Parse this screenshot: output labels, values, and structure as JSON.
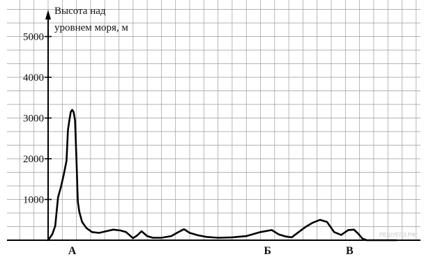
{
  "chart_data": {
    "type": "line",
    "ylabel": [
      "Высота над",
      "уровнем моря, м"
    ],
    "yticks": [
      {
        "value": 1000,
        "label": "1000"
      },
      {
        "value": 2000,
        "label": "2000"
      },
      {
        "value": 3000,
        "label": "3000"
      },
      {
        "value": 4000,
        "label": "4000"
      },
      {
        "value": 5000,
        "label": "5000"
      }
    ],
    "ylim": [
      0,
      5500
    ],
    "grid": true,
    "points_of_interest": [
      {
        "label": "А",
        "x": 1.7
      },
      {
        "label": "Б",
        "x": 15.5
      },
      {
        "label": "В",
        "x": 21.3
      }
    ],
    "series": [
      {
        "x": [
          0,
          0.3,
          0.5,
          0.7,
          0.9,
          1.1,
          1.3,
          1.4,
          1.5,
          1.6,
          1.7,
          1.8,
          1.9,
          2.0,
          2.1,
          2.2,
          2.4,
          2.7,
          3.1,
          3.6,
          4.1,
          4.6,
          5.1,
          5.5,
          6.0,
          6.3,
          6.6,
          7.0,
          7.4,
          8.0,
          8.7,
          9.2,
          9.6,
          10.0,
          10.6,
          11.2,
          12.0,
          13.0,
          14.0,
          15.0,
          15.8,
          16.3,
          16.8,
          17.2,
          17.7,
          18.2,
          18.7,
          19.2,
          19.7,
          20.2,
          20.7,
          21.2,
          21.6,
          21.9,
          22.2,
          22.5,
          22.8,
          23.1,
          23.4,
          23.7,
          24.0,
          24.3,
          24.6
        ],
        "y": [
          0,
          150,
          350,
          1050,
          1300,
          1600,
          1950,
          2700,
          2950,
          3150,
          3200,
          3150,
          2950,
          2000,
          950,
          700,
          450,
          300,
          200,
          180,
          220,
          260,
          240,
          200,
          50,
          120,
          220,
          100,
          60,
          60,
          100,
          200,
          270,
          180,
          120,
          80,
          60,
          70,
          100,
          200,
          250,
          140,
          90,
          70,
          200,
          330,
          430,
          500,
          450,
          200,
          130,
          250,
          260,
          160,
          40,
          0,
          0,
          0,
          0,
          0,
          0,
          0,
          0
        ]
      }
    ],
    "watermark": "РЕШУЕГЭ.РФ"
  }
}
